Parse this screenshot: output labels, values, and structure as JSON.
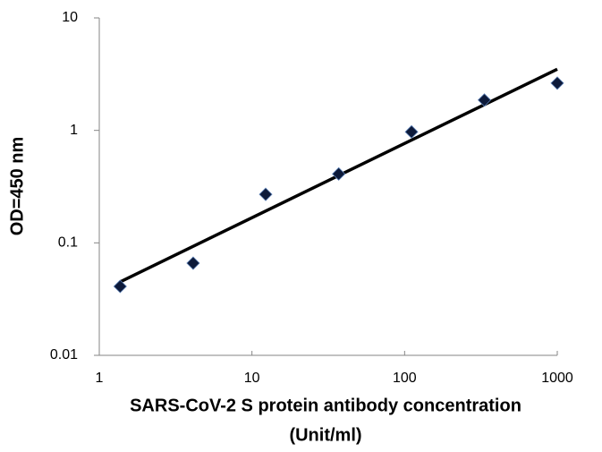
{
  "chart_data": {
    "type": "scatter",
    "x_label": [
      "SARS-CoV-2 S protein antibody concentration",
      "(Unit/ml)"
    ],
    "y_label": "OD=450 nm",
    "x": [
      1.37,
      4.12,
      12.3,
      37,
      111,
      333,
      1000
    ],
    "values": [
      0.041,
      0.066,
      0.27,
      0.41,
      0.97,
      1.86,
      2.63
    ],
    "color": "#0d1a3a",
    "trendline": {
      "x": [
        1.37,
        1000
      ],
      "values": [
        0.045,
        3.5
      ],
      "color": "#000000"
    },
    "xlim": [
      1,
      1000
    ],
    "ylim": [
      0.01,
      10
    ],
    "xticks": [
      1,
      10,
      100,
      1000
    ],
    "yticks": [
      0.01,
      0.1,
      1,
      10
    ],
    "xscale": "log",
    "yscale": "log",
    "grid": false
  }
}
